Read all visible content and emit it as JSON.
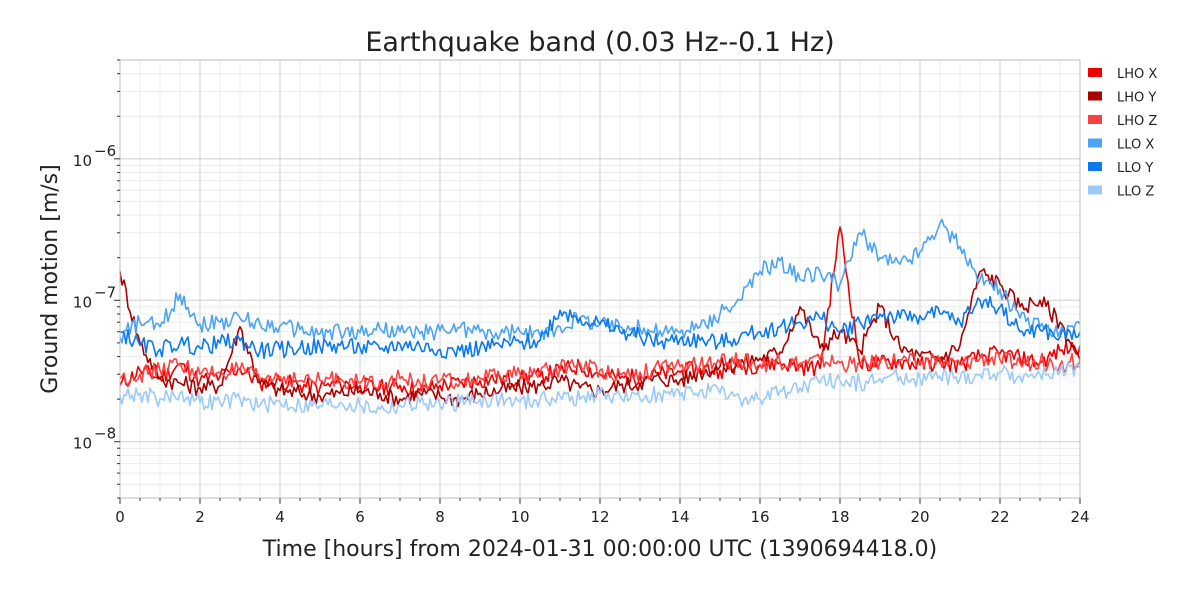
{
  "chart_data": {
    "type": "line",
    "title": "Earthquake band (0.03 Hz--0.1 Hz)",
    "xlabel": "Time [hours] from 2024-01-31 00:00:00 UTC (1390694418.0)",
    "ylabel": "Ground motion [m/s]",
    "xlim": [
      0,
      24
    ],
    "ylim": [
      4e-09,
      5e-06
    ],
    "yscale": "log",
    "grid": true,
    "legend_position": "top-right, outside plot",
    "x_ticks": [
      "0",
      "2",
      "4",
      "6",
      "8",
      "10",
      "12",
      "14",
      "16",
      "18",
      "20",
      "22",
      "24"
    ],
    "y_ticks": [
      {
        "value": 1e-08,
        "base": "10",
        "exp": "−8"
      },
      {
        "value": 1e-07,
        "base": "10",
        "exp": "−7"
      },
      {
        "value": 1e-06,
        "base": "10",
        "exp": "−6"
      }
    ],
    "x": [
      0,
      0.5,
      1,
      1.5,
      2,
      2.5,
      3,
      3.5,
      4,
      4.5,
      5,
      5.5,
      6,
      6.5,
      7,
      7.5,
      8,
      8.5,
      9,
      9.5,
      10,
      10.5,
      11,
      11.5,
      12,
      12.5,
      13,
      13.5,
      14,
      14.5,
      15,
      15.5,
      16,
      16.5,
      17,
      17.5,
      18,
      18.5,
      19,
      19.5,
      20,
      20.5,
      21,
      21.5,
      22,
      22.5,
      23,
      23.5,
      24
    ],
    "series": [
      {
        "name": "LHO X",
        "color": "#ee0000",
        "values": [
          2.5e-08,
          3.2e-08,
          2.8e-08,
          3.5e-08,
          2.7e-08,
          2.9e-08,
          3.3e-08,
          2.6e-08,
          2.7e-08,
          2.5e-08,
          2.4e-08,
          2.6e-08,
          2.5e-08,
          2.4e-08,
          2.5e-08,
          2.3e-08,
          2.5e-08,
          2.6e-08,
          2.7e-08,
          2.8e-08,
          2.8e-08,
          2.9e-08,
          3.2e-08,
          3.4e-08,
          3e-08,
          2.8e-08,
          2.9e-08,
          3e-08,
          3.1e-08,
          3.3e-08,
          3.2e-08,
          3.4e-08,
          3.5e-08,
          3.6e-08,
          3.4e-08,
          3.3e-08,
          3.3e-07,
          3.5e-08,
          3.6e-08,
          3.7e-08,
          3.5e-08,
          3.6e-08,
          3.5e-08,
          4e-08,
          4.2e-08,
          3.9e-08,
          3.6e-08,
          4.4e-08,
          4.8e-08
        ]
      },
      {
        "name": "LHO Y",
        "color": "#a90000",
        "values": [
          1.6e-07,
          5e-08,
          2.8e-08,
          2.6e-08,
          2.4e-08,
          2.5e-08,
          6.5e-08,
          2.6e-08,
          2.3e-08,
          2.2e-08,
          2.1e-08,
          2.2e-08,
          2.3e-08,
          2.2e-08,
          2e-08,
          2.2e-08,
          2.1e-08,
          2e-08,
          2.2e-08,
          2.3e-08,
          2.4e-08,
          2.5e-08,
          2.7e-08,
          2.4e-08,
          2.3e-08,
          2.5e-08,
          2.6e-08,
          2.8e-08,
          2.7e-08,
          3.1e-08,
          3.4e-08,
          3.6e-08,
          3.9e-08,
          4.3e-08,
          9e-08,
          4.6e-08,
          6e-08,
          4.4e-08,
          9e-08,
          4.6e-08,
          4e-08,
          3.9e-08,
          4.8e-08,
          1.6e-07,
          1.3e-07,
          9e-08,
          1e-07,
          7e-08,
          3.8e-08
        ]
      },
      {
        "name": "LHO Z",
        "color": "#ff4040",
        "values": [
          2.8e-08,
          3e-08,
          3.2e-08,
          3.6e-08,
          3e-08,
          3.1e-08,
          3.2e-08,
          2.8e-08,
          2.9e-08,
          2.7e-08,
          2.7e-08,
          2.8e-08,
          2.6e-08,
          2.7e-08,
          2.8e-08,
          2.6e-08,
          2.7e-08,
          2.6e-08,
          2.8e-08,
          2.9e-08,
          3e-08,
          3.1e-08,
          3.3e-08,
          3.6e-08,
          3.2e-08,
          3e-08,
          3.1e-08,
          3.3e-08,
          3.4e-08,
          3.5e-08,
          3.6e-08,
          3.8e-08,
          3.5e-08,
          3.7e-08,
          3.6e-08,
          3.8e-08,
          3.6e-08,
          3.5e-08,
          3.7e-08,
          3.8e-08,
          3.6e-08,
          3.7e-08,
          3.5e-08,
          3.9e-08,
          3.8e-08,
          3.6e-08,
          3.7e-08,
          3.5e-08,
          3.8e-08
        ]
      },
      {
        "name": "LLO X",
        "color": "#4ba3f5",
        "values": [
          5.5e-08,
          7e-08,
          6.5e-08,
          1.1e-07,
          6.8e-08,
          7e-08,
          7.5e-08,
          6.8e-08,
          6.6e-08,
          6.2e-08,
          5.8e-08,
          6e-08,
          5.9e-08,
          6.3e-08,
          6e-08,
          5.8e-08,
          6.1e-08,
          6.4e-08,
          6e-08,
          5.7e-08,
          6e-08,
          5.6e-08,
          6.5e-08,
          7.5e-08,
          6.8e-08,
          6.5e-08,
          6.3e-08,
          6.1e-08,
          5.9e-08,
          6.5e-08,
          8e-08,
          1e-07,
          1.6e-07,
          1.9e-07,
          1.4e-07,
          1.6e-07,
          1.3e-07,
          3e-07,
          2e-07,
          1.8e-07,
          2.2e-07,
          3.5e-07,
          2.4e-07,
          1.4e-07,
          1.2e-07,
          7.5e-08,
          6.5e-08,
          6e-08,
          6.8e-08
        ]
      },
      {
        "name": "LLO Y",
        "color": "#0a78f0",
        "values": [
          6e-08,
          4.8e-08,
          4.5e-08,
          5e-08,
          4.6e-08,
          5e-08,
          5.2e-08,
          4.4e-08,
          4.5e-08,
          4.6e-08,
          4.7e-08,
          4.8e-08,
          4.6e-08,
          4.5e-08,
          4.9e-08,
          4.7e-08,
          4.5e-08,
          4.4e-08,
          4.6e-08,
          4.8e-08,
          5e-08,
          5.2e-08,
          8.5e-08,
          7.5e-08,
          6.8e-08,
          6e-08,
          5.6e-08,
          5e-08,
          5.3e-08,
          5.2e-08,
          5e-08,
          5.5e-08,
          6e-08,
          6.5e-08,
          7e-08,
          7.5e-08,
          6e-08,
          7e-08,
          8e-08,
          7.5e-08,
          7.8e-08,
          8e-08,
          7e-08,
          1e-07,
          9e-08,
          6e-08,
          6.2e-08,
          5.5e-08,
          6e-08
        ]
      },
      {
        "name": "LLO Z",
        "color": "#9ccaf7",
        "values": [
          2.1e-08,
          2.2e-08,
          2e-08,
          2.2e-08,
          1.9e-08,
          1.9e-08,
          2e-08,
          1.8e-08,
          1.9e-08,
          1.8e-08,
          1.8e-08,
          1.9e-08,
          1.8e-08,
          1.7e-08,
          1.8e-08,
          1.9e-08,
          1.8e-08,
          1.9e-08,
          2e-08,
          2e-08,
          1.9e-08,
          2e-08,
          2.1e-08,
          2e-08,
          2.2e-08,
          2.1e-08,
          2e-08,
          2.2e-08,
          2.1e-08,
          2.3e-08,
          2.2e-08,
          2e-08,
          2e-08,
          2.3e-08,
          2.4e-08,
          2.6e-08,
          2.7e-08,
          2.6e-08,
          2.8e-08,
          2.9e-08,
          2.8e-08,
          2.9e-08,
          2.8e-08,
          3e-08,
          3.1e-08,
          2.9e-08,
          3e-08,
          3.1e-08,
          3.3e-08
        ]
      }
    ]
  }
}
